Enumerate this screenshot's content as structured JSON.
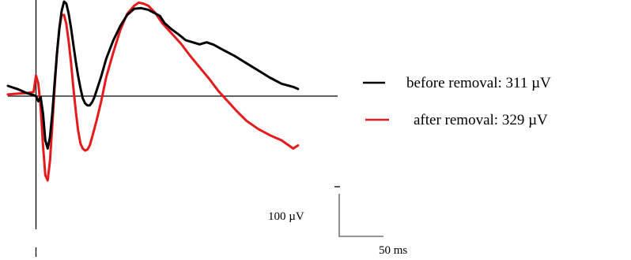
{
  "chart_data": {
    "type": "line",
    "title": "",
    "xlabel": "",
    "ylabel": "",
    "grid": false,
    "legend_position": "right",
    "x_unit": "ms",
    "y_unit": "µV",
    "xlim": [
      -12,
      130
    ],
    "ylim": [
      -690,
      460
    ],
    "zero_line": true,
    "stimulus_marker_x": 0,
    "series": [
      {
        "name": "before removal: 311 µV",
        "color": "#000000",
        "points": [
          [
            -12,
            50
          ],
          [
            -8,
            35
          ],
          [
            -4,
            15
          ],
          [
            -1,
            5
          ],
          [
            0,
            0
          ],
          [
            1,
            -25
          ],
          [
            2,
            -5
          ],
          [
            3,
            -85
          ],
          [
            4,
            -215
          ],
          [
            5,
            -255
          ],
          [
            6,
            -200
          ],
          [
            7,
            -80
          ],
          [
            8,
            70
          ],
          [
            9,
            210
          ],
          [
            10,
            330
          ],
          [
            11,
            415
          ],
          [
            12,
            460
          ],
          [
            13,
            450
          ],
          [
            14,
            400
          ],
          [
            15,
            330
          ],
          [
            16,
            250
          ],
          [
            17,
            170
          ],
          [
            18,
            100
          ],
          [
            19,
            40
          ],
          [
            20,
            -10
          ],
          [
            21,
            -35
          ],
          [
            22,
            -45
          ],
          [
            23,
            -45
          ],
          [
            24,
            -30
          ],
          [
            25,
            -5
          ],
          [
            26,
            30
          ],
          [
            28,
            100
          ],
          [
            30,
            180
          ],
          [
            33,
            270
          ],
          [
            36,
            340
          ],
          [
            39,
            395
          ],
          [
            42,
            425
          ],
          [
            45,
            428
          ],
          [
            48,
            420
          ],
          [
            51,
            402
          ],
          [
            53,
            390
          ],
          [
            55,
            355
          ],
          [
            58,
            325
          ],
          [
            61,
            300
          ],
          [
            64,
            272
          ],
          [
            67,
            262
          ],
          [
            70,
            252
          ],
          [
            73,
            262
          ],
          [
            76,
            250
          ],
          [
            80,
            225
          ],
          [
            85,
            195
          ],
          [
            90,
            160
          ],
          [
            95,
            125
          ],
          [
            100,
            90
          ],
          [
            105,
            60
          ],
          [
            110,
            45
          ],
          [
            112,
            35
          ]
        ]
      },
      {
        "name": "after removal: 329 µV",
        "color": "#e41a1c",
        "points": [
          [
            -12,
            8
          ],
          [
            -8,
            12
          ],
          [
            -4,
            15
          ],
          [
            -1,
            20
          ],
          [
            0,
            100
          ],
          [
            1,
            60
          ],
          [
            2,
            -55
          ],
          [
            3,
            -240
          ],
          [
            4,
            -385
          ],
          [
            5,
            -410
          ],
          [
            6,
            -315
          ],
          [
            7,
            -140
          ],
          [
            8,
            50
          ],
          [
            9,
            210
          ],
          [
            10,
            330
          ],
          [
            11,
            395
          ],
          [
            12,
            395
          ],
          [
            13,
            350
          ],
          [
            14,
            265
          ],
          [
            15,
            160
          ],
          [
            16,
            40
          ],
          [
            17,
            -70
          ],
          [
            18,
            -165
          ],
          [
            19,
            -230
          ],
          [
            20,
            -255
          ],
          [
            21,
            -265
          ],
          [
            22,
            -260
          ],
          [
            23,
            -240
          ],
          [
            24,
            -200
          ],
          [
            26,
            -115
          ],
          [
            28,
            -20
          ],
          [
            30,
            90
          ],
          [
            33,
            210
          ],
          [
            36,
            320
          ],
          [
            39,
            400
          ],
          [
            42,
            440
          ],
          [
            44,
            455
          ],
          [
            46,
            450
          ],
          [
            48,
            440
          ],
          [
            51,
            405
          ],
          [
            54,
            355
          ],
          [
            58,
            305
          ],
          [
            62,
            255
          ],
          [
            66,
            195
          ],
          [
            70,
            140
          ],
          [
            74,
            85
          ],
          [
            78,
            25
          ],
          [
            82,
            -25
          ],
          [
            86,
            -75
          ],
          [
            90,
            -120
          ],
          [
            95,
            -160
          ],
          [
            100,
            -190
          ],
          [
            105,
            -215
          ],
          [
            110,
            -255
          ],
          [
            112,
            -240
          ]
        ]
      }
    ],
    "scale_bar": {
      "y_value": 100,
      "y_label": "100 µV",
      "x_value": 50,
      "x_label": "50 ms"
    }
  }
}
